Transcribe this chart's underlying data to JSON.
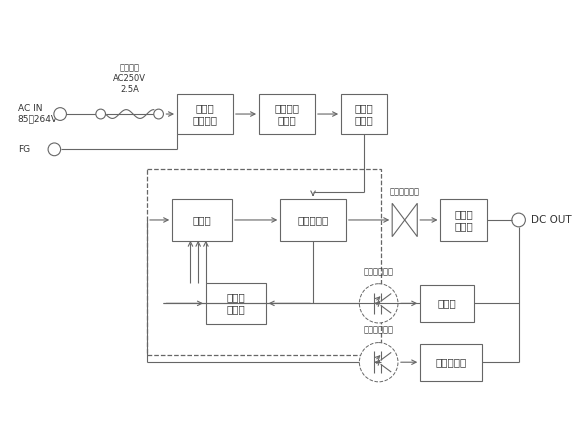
{
  "bg": "#ffffff",
  "lc": "#666666",
  "lw": 0.8,
  "fs_label": 7.5,
  "fs_small": 6.0,
  "ac_in": "AC IN\n85～264V",
  "fuse": "ヒューズ\nAC250V\n2.5A",
  "fg": "FG",
  "dc_out": "DC OUT",
  "output_trans": "出力トランス",
  "lbl_noise": "ノイズ\nフィルタ",
  "lbl_inrush": "突入電流\n防　止",
  "lbl_rect1": "整　流\n平　滑",
  "lbl_ctrl": "制　御",
  "lbl_inv": "インバータ",
  "lbl_oc": "過電流\n検　出",
  "lbl_rect2": "整　流\n平　滑",
  "lbl_ctrl2": "制　御",
  "lbl_ov": "過電圧保護",
  "lbl_pc": "フォトカプラ"
}
